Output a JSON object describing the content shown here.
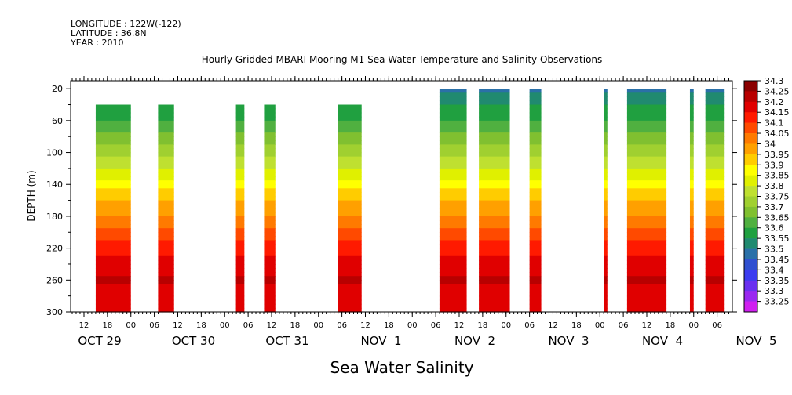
{
  "header": {
    "longitude": "LONGITUDE : 122W(-122)",
    "latitude": "LATITUDE : 36.8N",
    "year": "YEAR : 2010"
  },
  "chart_data": {
    "type": "heatmap",
    "title": "Hourly Gridded MBARI Mooring M1 Sea Water Temperature and Salinity Observations",
    "xlabel": "Sea Water Salinity",
    "ylabel": "DEPTH (m)",
    "y_ticks": [
      "20",
      "60",
      "100",
      "140",
      "180",
      "220",
      "260",
      "300"
    ],
    "ylim": [
      300,
      10
    ],
    "x_hour_ticks": [
      "12",
      "18",
      "00",
      "06",
      "12",
      "18",
      "00",
      "06",
      "12",
      "18",
      "00",
      "06",
      "12",
      "18",
      "00",
      "06",
      "12",
      "18",
      "00",
      "06",
      "12",
      "18",
      "00",
      "06",
      "12",
      "18",
      "00",
      "06",
      "12",
      "18",
      "00",
      "06"
    ],
    "x_day_labels": [
      "OCT 29",
      "OCT 30",
      "OCT 31",
      "NOV  1",
      "NOV  2",
      "NOV  3",
      "NOV  4",
      "NOV  5"
    ],
    "colorbar": {
      "levels": [
        "34.3",
        "34.25",
        "34.2",
        "34.15",
        "34.1",
        "34.05",
        "34",
        "33.95",
        "33.9",
        "33.85",
        "33.8",
        "33.75",
        "33.7",
        "33.65",
        "33.6",
        "33.55",
        "33.5",
        "33.45",
        "33.4",
        "33.35",
        "33.3",
        "33.25"
      ],
      "colors": [
        "#8b0000",
        "#b80000",
        "#e00000",
        "#ff1a00",
        "#ff4a00",
        "#ff7a00",
        "#ffa000",
        "#ffcc00",
        "#ffff00",
        "#e0f000",
        "#bfe030",
        "#a0d030",
        "#80c030",
        "#50b040",
        "#20a040",
        "#208a70",
        "#2a70a8",
        "#3050d0",
        "#3c3cf0",
        "#6a30f0",
        "#9a28f0",
        "#d020f0"
      ]
    },
    "profile": [
      {
        "depth": 40,
        "value": 33.6
      },
      {
        "depth": 60,
        "value": 33.65
      },
      {
        "depth": 80,
        "value": 33.72
      },
      {
        "depth": 100,
        "value": 33.78
      },
      {
        "depth": 120,
        "value": 33.84
      },
      {
        "depth": 140,
        "value": 33.92
      },
      {
        "depth": 160,
        "value": 34.0
      },
      {
        "depth": 180,
        "value": 34.05
      },
      {
        "depth": 200,
        "value": 34.12
      },
      {
        "depth": 220,
        "value": 34.18
      },
      {
        "depth": 240,
        "value": 34.22
      },
      {
        "depth": 260,
        "value": 34.26
      },
      {
        "depth": 280,
        "value": 34.2
      },
      {
        "depth": 300,
        "value": 34.2
      }
    ],
    "segments": [
      {
        "start_day": 0.625,
        "end_day": 1.0,
        "top_depth": 40
      },
      {
        "start_day": 1.29,
        "end_day": 1.46,
        "top_depth": 40
      },
      {
        "start_day": 2.12,
        "end_day": 2.21,
        "top_depth": 40
      },
      {
        "start_day": 2.42,
        "end_day": 2.54,
        "top_depth": 40
      },
      {
        "start_day": 3.21,
        "end_day": 3.46,
        "top_depth": 40
      },
      {
        "start_day": 4.29,
        "end_day": 4.58,
        "top_depth": 20
      },
      {
        "start_day": 4.71,
        "end_day": 5.04,
        "top_depth": 20
      },
      {
        "start_day": 5.25,
        "end_day": 5.375,
        "top_depth": 20
      },
      {
        "start_day": 6.04,
        "end_day": 6.08,
        "top_depth": 20
      },
      {
        "start_day": 6.29,
        "end_day": 6.71,
        "top_depth": 20
      },
      {
        "start_day": 6.96,
        "end_day": 7.0,
        "top_depth": 20
      },
      {
        "start_day": 7.125,
        "end_day": 7.33,
        "top_depth": 20
      }
    ]
  }
}
